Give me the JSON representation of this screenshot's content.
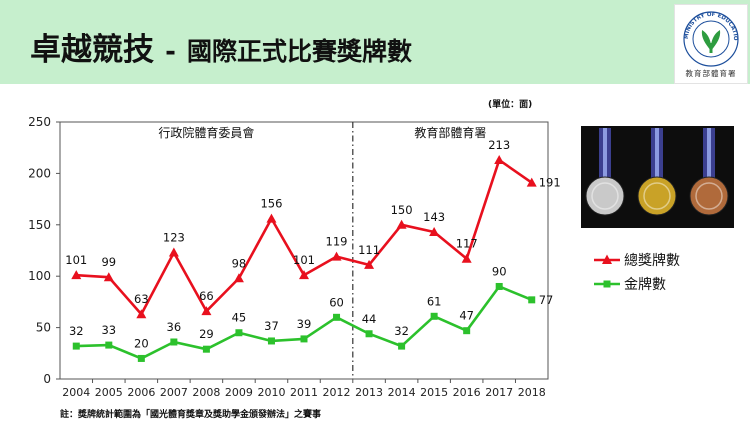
{
  "header": {
    "title_main": "卓越競技",
    "title_separator": "-",
    "title_sub": "國際正式比賽獎牌數",
    "logo_caption": "教育部體育署",
    "logo_ring_text": "MINISTRY OF EDUCATION"
  },
  "unit_label": "(單位：面)",
  "footnote": "註：獎牌統計範圍為「國光體育獎章及獎助學金頒發辦法」之賽事",
  "legend": {
    "items": [
      {
        "label": "總獎牌數",
        "color": "#e8101e",
        "marker": "triangle"
      },
      {
        "label": "金牌數",
        "color": "#2cc12c",
        "marker": "square"
      }
    ]
  },
  "photo": {
    "medal_colors": [
      "#c9c9c9",
      "#c9a227",
      "#b06a3b"
    ]
  },
  "chart_data": {
    "type": "line",
    "categories": [
      "2004",
      "2005",
      "2006",
      "2007",
      "2008",
      "2009",
      "2010",
      "2011",
      "2012",
      "2013",
      "2014",
      "2015",
      "2016",
      "2017",
      "2018"
    ],
    "series": [
      {
        "name": "總獎牌數",
        "color": "#e8101e",
        "values": [
          101,
          99,
          63,
          123,
          66,
          98,
          156,
          101,
          119,
          111,
          150,
          143,
          117,
          213,
          191
        ]
      },
      {
        "name": "金牌數",
        "color": "#2cc12c",
        "values": [
          32,
          33,
          20,
          36,
          29,
          45,
          37,
          39,
          60,
          44,
          32,
          61,
          47,
          90,
          77
        ]
      }
    ],
    "ylim": [
      0,
      250
    ],
    "yticks": [
      0,
      50,
      100,
      150,
      200,
      250
    ],
    "grid": false,
    "period_labels": [
      "行政院體育委員會",
      "教育部體育署"
    ],
    "divider_between": [
      "2012",
      "2013"
    ]
  }
}
